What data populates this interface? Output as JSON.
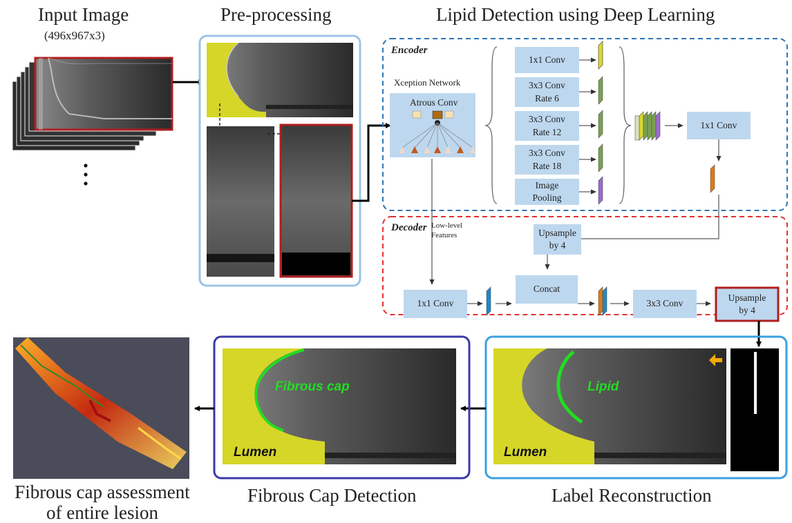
{
  "headers": {
    "input": "Input Image",
    "input_dims": "(496x967x3)",
    "preprocessing": "Pre-processing",
    "lipid_detection": "Lipid Detection using Deep Learning",
    "fibrous_cap_detection": "Fibrous Cap Detection",
    "label_reconstruction": "Label Reconstruction",
    "assessment_line1": "Fibrous cap assessment",
    "assessment_line2": "of entire lesion"
  },
  "encoder": {
    "title": "Encoder",
    "backbone": "Xception Network",
    "atrous": "Atrous Conv",
    "branches": {
      "conv1": "1x1 Conv",
      "conv3_r6_a": "3x3 Conv",
      "conv3_r6_b": "Rate 6",
      "conv3_r12_a": "3x3 Conv",
      "conv3_r12_b": "Rate 12",
      "conv3_r18_a": "3x3 Conv",
      "conv3_r18_b": "Rate 18",
      "pool_a": "Image",
      "pool_b": "Pooling"
    },
    "post_conv": "1x1 Conv"
  },
  "decoder": {
    "title": "Decoder",
    "low_level_a": "Low-level",
    "low_level_b": "Features",
    "upsample_mid_a": "Upsample",
    "upsample_mid_b": "by 4",
    "conv1": "1x1 Conv",
    "concat": "Concat",
    "conv3": "3x3 Conv",
    "upsample_out_a": "Upsample",
    "upsample_out_b": "by 4"
  },
  "labels": {
    "fibrous_cap": "Fibrous cap",
    "lumen_left": "Lumen",
    "lipid": "Lipid",
    "lumen_right": "Lumen"
  },
  "colors": {
    "preprocess_frame": "#9dc3e6",
    "encoder_border": "#2e75b6",
    "decoder_border": "#e03030",
    "fibrous_frame": "#3a3aa8",
    "label_frame": "#3aa0e0",
    "red_frame": "#b01e1e",
    "block_fill": "#bdd7ee",
    "lumen_yellow": "#d6d628",
    "lipid_green": "#22dd22",
    "arrow_orange": "#f6a800"
  }
}
